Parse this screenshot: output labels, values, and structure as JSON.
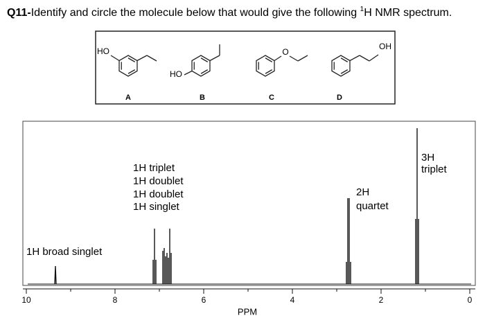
{
  "header": {
    "number": "Q11-",
    "text": "Identify and circle the molecule below that would give the following ",
    "superscript": "1",
    "text_end": "H NMR spectrum."
  },
  "molecules": [
    {
      "label": "A",
      "group": "HO"
    },
    {
      "label": "B",
      "group": "HO"
    },
    {
      "label": "C",
      "group": "O"
    },
    {
      "label": "D",
      "group": "OH"
    }
  ],
  "spectrum": {
    "annotations": [
      {
        "lines": [
          "1H broad singlet"
        ]
      },
      {
        "lines": [
          "1H triplet",
          "1H doublet",
          "1H doublet",
          "1H singlet"
        ]
      },
      {
        "lines": [
          "2H",
          "quartet"
        ]
      },
      {
        "lines": [
          "3H",
          "triplet"
        ]
      }
    ],
    "x_ticks": [
      "10",
      "8",
      "6",
      "4",
      "2",
      "0"
    ],
    "x_label": "PPM"
  }
}
